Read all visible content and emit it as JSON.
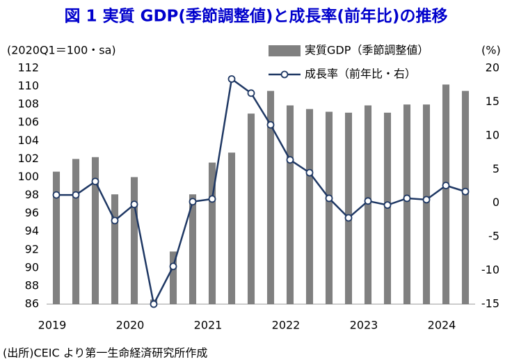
{
  "chart_data": {
    "type": "bar_line",
    "title": "図 1 実質 GDP(季節調整値)と成長率(前年比)の推移",
    "y_label": "(2020Q1＝100・sa)",
    "y2_label": "(%)",
    "source": "(出所)CEIC より第一生命経済研究所作成",
    "categories": [
      "2019",
      null,
      null,
      null,
      "2020",
      null,
      null,
      null,
      "2021",
      null,
      null,
      null,
      "2022",
      null,
      null,
      null,
      "2023",
      null,
      null,
      null,
      "2024",
      null
    ],
    "series": [
      {
        "name": "実質GDP（季節調整値）",
        "type": "bar",
        "color": "#808080",
        "values": [
          100.6,
          102.0,
          102.2,
          98.1,
          100.0,
          86.5,
          91.8,
          98.1,
          101.6,
          102.7,
          107.0,
          109.5,
          107.9,
          107.5,
          107.2,
          107.1,
          107.9,
          107.1,
          108.0,
          108.0,
          110.2,
          109.5
        ]
      },
      {
        "name": "成長率（前年比・右）",
        "type": "line",
        "axis": "y2",
        "color": "#1f3864",
        "values": [
          1.2,
          1.2,
          3.2,
          -2.6,
          -0.2,
          -15.0,
          -9.4,
          0.2,
          0.6,
          18.4,
          16.3,
          11.6,
          6.4,
          4.5,
          0.7,
          -2.2,
          0.3,
          -0.3,
          0.7,
          0.5,
          2.6,
          1.7
        ]
      }
    ],
    "ylim": [
      86,
      112
    ],
    "yticks": [
      86,
      88,
      90,
      92,
      94,
      96,
      98,
      100,
      102,
      104,
      106,
      108,
      110,
      112
    ],
    "y2lim": [
      -15,
      20
    ],
    "y2ticks": [
      -15,
      -10,
      -5,
      0,
      5,
      10,
      15,
      20
    ],
    "negative_tick_color": "#ff0000",
    "grid": false
  }
}
